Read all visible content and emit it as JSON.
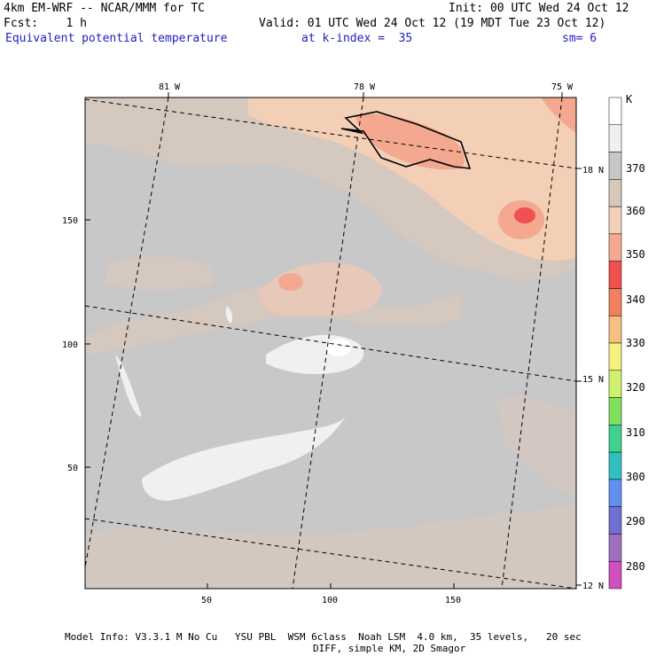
{
  "header": {
    "model": "4km EM-WRF -- NCAR/MMM for TC",
    "init": "Init: 00 UTC Wed 24 Oct 12",
    "fcst": "Fcst:    1 h",
    "valid": "Valid: 01 UTC Wed 24 Oct 12 (19 MDT Tue 23 Oct 12)",
    "field": "Equivalent potential temperature",
    "level": "at k-index =  35",
    "smooth": "sm= 6"
  },
  "map": {
    "top_lon_labels": [
      "81 W",
      "78 W",
      "75 W"
    ],
    "right_lat_labels": [
      "18 N",
      "15 N",
      "12 N"
    ],
    "y_ticks": [
      "150",
      "100",
      "50"
    ],
    "x_ticks": [
      "50",
      "100",
      "150"
    ],
    "ocean_color": "#c8c8c8",
    "land_color": "#d8c8bc"
  },
  "colorbar": {
    "unit": "K",
    "labels": [
      "370",
      "360",
      "350",
      "340",
      "330",
      "320",
      "310",
      "300",
      "290",
      "280"
    ],
    "colors": [
      "#ffffff",
      "#f0f0f0",
      "#c8c8c8",
      "#d8c8bc",
      "#f5d0b8",
      "#f5a890",
      "#f05050",
      "#f08060",
      "#f5c080",
      "#f5f080",
      "#d0f070",
      "#80e060",
      "#40d090",
      "#30c0c0",
      "#6090f0",
      "#7070d0",
      "#a070c0",
      "#d050c0"
    ]
  },
  "footer": {
    "line1": "Model Info: V3.3.1 M No Cu   YSU PBL  WSM 6class  Noah LSM  4.0 km,  35 levels,   20 sec",
    "line2": "DIFF, simple KM, 2D Smagor"
  }
}
